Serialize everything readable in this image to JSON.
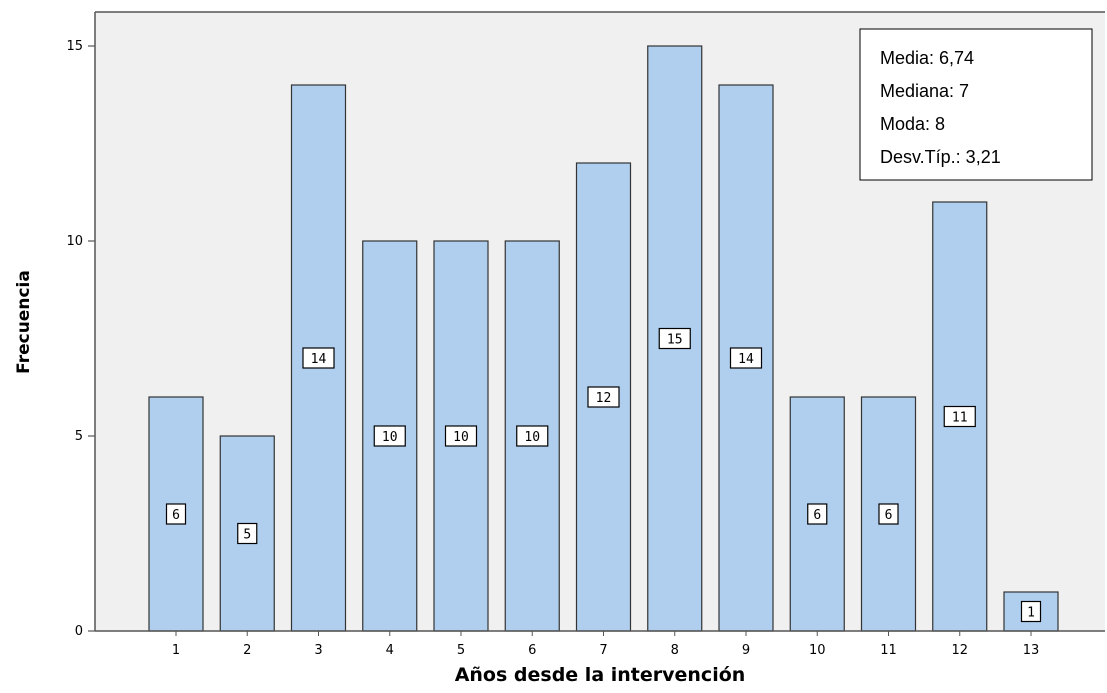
{
  "chart_data": {
    "type": "bar",
    "categories": [
      "1",
      "2",
      "3",
      "4",
      "5",
      "6",
      "7",
      "8",
      "9",
      "10",
      "11",
      "12",
      "13"
    ],
    "values": [
      6,
      5,
      14,
      10,
      10,
      10,
      12,
      15,
      14,
      6,
      6,
      11,
      1
    ],
    "data_labels": [
      "6",
      "5",
      "14",
      "10",
      "10",
      "10",
      "12",
      "15",
      "14",
      "6",
      "6",
      "11",
      "1"
    ],
    "xlabel": "Años desde la intervención",
    "ylabel": "Frecuencia",
    "ylim": [
      0,
      16.1
    ],
    "yticks": [
      0,
      5,
      10,
      15
    ],
    "ytick_labels": [
      "0",
      "5",
      "10",
      "15"
    ],
    "grid": false,
    "colors": {
      "bar_fill": "#b0cfee",
      "bar_stroke": "#333333",
      "plot_background": "#f0f0f0",
      "axis": "#555555"
    },
    "annotations": {
      "stats_box": [
        "Media: 6,74",
        "Mediana: 7",
        "Moda: 8",
        "Desv.Típ.: 3,21"
      ],
      "position": "top-right"
    }
  }
}
